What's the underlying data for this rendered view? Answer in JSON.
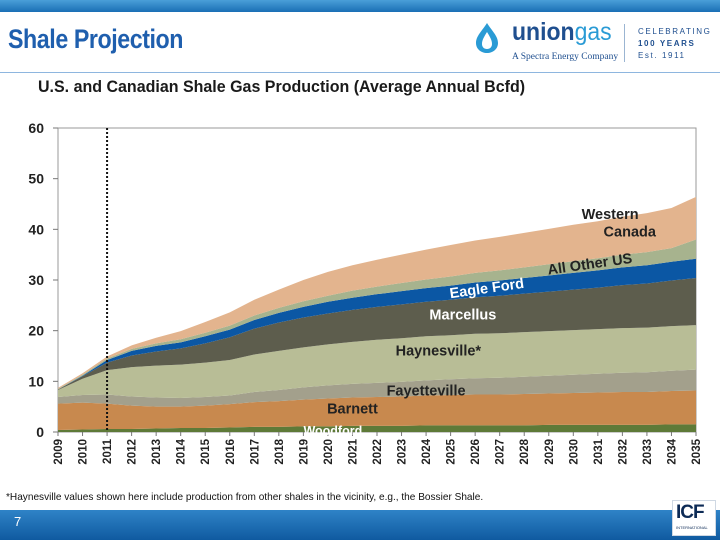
{
  "slide": {
    "title": "Shale Projection",
    "page_number": "7",
    "footnote": "*Haynesville values shown here include production from other shales in the vicinity, e.g., the Bossier Shale."
  },
  "logo": {
    "name_part1": "union",
    "name_part2": "gas",
    "subtitle": "A Spectra Energy Company",
    "celebrating": "CELEBRATING",
    "years": "100 YEARS",
    "est": "Est. 1911",
    "partner": "ICF",
    "partner_sub": "INTERNATIONAL"
  },
  "colors": {
    "accent_blue": "#1f5fae",
    "woodford": "#5e7a38",
    "barnett": "#c8894e",
    "fayetteville": "#a3a08c",
    "haynesville": "#b8bd96",
    "marcellus": "#5d5d4d",
    "eagle_ford": "#0b57a4",
    "all_other_us": "#a7b38e",
    "western_canada": "#e3b48e"
  },
  "chart_data": {
    "type": "area",
    "title": "U.S. and Canadian Shale Gas Production (Average Annual Bcfd)",
    "xlabel": "",
    "ylabel": "",
    "ylim": [
      0,
      60
    ],
    "yticks": [
      "0",
      "10",
      "20",
      "30",
      "40",
      "50",
      "60"
    ],
    "grid": false,
    "stacked": true,
    "x": [
      "2009",
      "2010",
      "2011",
      "2012",
      "2013",
      "2014",
      "2015",
      "2016",
      "2017",
      "2018",
      "2019",
      "2020",
      "2021",
      "2022",
      "2023",
      "2024",
      "2025",
      "2026",
      "2027",
      "2028",
      "2029",
      "2030",
      "2031",
      "2032",
      "2033",
      "2034",
      "2035"
    ],
    "divider_x": "2011",
    "series": [
      {
        "name": "Woodford",
        "color": "#5e7a38",
        "values": [
          0.4,
          0.5,
          0.6,
          0.6,
          0.7,
          0.8,
          0.8,
          0.9,
          1.0,
          1.0,
          1.1,
          1.1,
          1.2,
          1.2,
          1.2,
          1.3,
          1.3,
          1.3,
          1.3,
          1.3,
          1.4,
          1.4,
          1.4,
          1.4,
          1.4,
          1.5,
          1.5
        ]
      },
      {
        "name": "Barnett",
        "color": "#c8894e",
        "values": [
          5.2,
          5.3,
          5.0,
          4.6,
          4.3,
          4.2,
          4.4,
          4.6,
          4.9,
          5.1,
          5.3,
          5.5,
          5.6,
          5.7,
          5.8,
          5.9,
          6.0,
          6.1,
          6.1,
          6.2,
          6.2,
          6.3,
          6.4,
          6.5,
          6.5,
          6.6,
          6.7
        ]
      },
      {
        "name": "Fayetteville",
        "color": "#a3a08c",
        "values": [
          1.3,
          1.5,
          1.8,
          1.8,
          1.8,
          1.7,
          1.7,
          1.7,
          2.0,
          2.2,
          2.4,
          2.6,
          2.7,
          2.8,
          2.9,
          3.0,
          3.1,
          3.2,
          3.3,
          3.4,
          3.5,
          3.6,
          3.7,
          3.8,
          3.9,
          4.0,
          4.1
        ]
      },
      {
        "name": "Haynesville*",
        "color": "#b8bd96",
        "values": [
          1.4,
          3.2,
          4.8,
          5.8,
          6.3,
          6.6,
          6.8,
          7.0,
          7.4,
          7.7,
          7.9,
          8.1,
          8.3,
          8.5,
          8.6,
          8.7,
          8.7,
          8.8,
          8.8,
          8.8,
          8.8,
          8.8,
          8.8,
          8.8,
          8.8,
          8.8,
          8.8
        ]
      },
      {
        "name": "Marcellus",
        "color": "#5d5d4d",
        "values": [
          0.1,
          0.5,
          1.5,
          2.3,
          2.8,
          3.2,
          3.8,
          4.5,
          5.1,
          5.6,
          5.9,
          6.1,
          6.3,
          6.5,
          6.7,
          6.8,
          7.0,
          7.2,
          7.4,
          7.6,
          7.8,
          8.0,
          8.2,
          8.5,
          8.7,
          9.0,
          9.3
        ]
      },
      {
        "name": "Eagle Ford",
        "color": "#0b57a4",
        "values": [
          0.0,
          0.1,
          0.5,
          0.9,
          1.1,
          1.2,
          1.4,
          1.5,
          1.7,
          1.9,
          2.1,
          2.3,
          2.4,
          2.5,
          2.6,
          2.7,
          2.8,
          2.9,
          3.0,
          3.1,
          3.2,
          3.3,
          3.4,
          3.5,
          3.6,
          3.7,
          3.8
        ]
      },
      {
        "name": "All Other US",
        "color": "#a7b38e",
        "values": [
          0.1,
          0.2,
          0.3,
          0.4,
          0.5,
          0.6,
          0.7,
          0.8,
          0.9,
          1.0,
          1.1,
          1.2,
          1.4,
          1.5,
          1.6,
          1.7,
          1.8,
          1.9,
          2.0,
          2.1,
          2.2,
          2.3,
          2.4,
          2.5,
          2.6,
          2.7,
          3.8
        ]
      },
      {
        "name": "Western Canada",
        "color": "#e3b48e",
        "values": [
          0.2,
          0.3,
          0.4,
          0.7,
          1.1,
          1.6,
          2.1,
          2.6,
          3.1,
          3.6,
          4.2,
          4.7,
          5.0,
          5.3,
          5.6,
          5.9,
          6.2,
          6.4,
          6.6,
          6.8,
          7.0,
          7.2,
          7.3,
          7.5,
          7.7,
          7.9,
          8.4
        ]
      }
    ],
    "annotations": [
      {
        "text": "Western",
        "series": "Western Canada"
      },
      {
        "text": "Canada",
        "series": "Western Canada"
      },
      {
        "text": "All Other US",
        "series": "All Other US"
      },
      {
        "text": "Eagle Ford",
        "series": "Eagle Ford"
      },
      {
        "text": "Marcellus",
        "series": "Marcellus"
      },
      {
        "text": "Haynesville*",
        "series": "Haynesville*"
      },
      {
        "text": "Fayetteville",
        "series": "Fayetteville"
      },
      {
        "text": "Barnett",
        "series": "Barnett"
      },
      {
        "text": "Woodford",
        "series": "Woodford"
      }
    ]
  }
}
